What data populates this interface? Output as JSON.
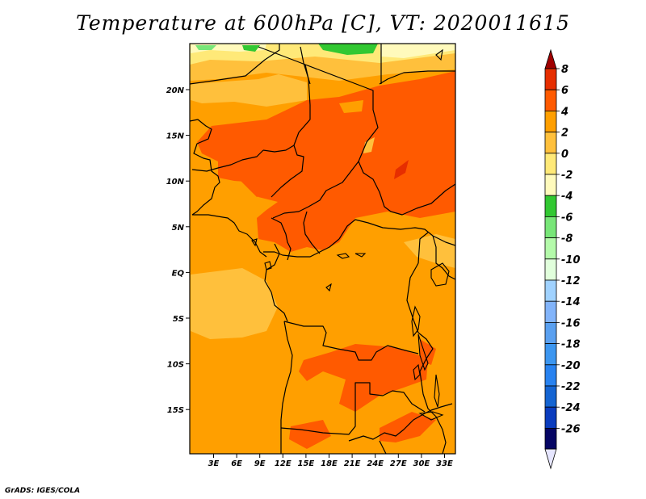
{
  "title": "Temperature at 600hPa [C], VT: 2020011615",
  "credit": "GrADS: IGES/COLA",
  "map": {
    "lon_ticks": [
      "3E",
      "6E",
      "9E",
      "12E",
      "15E",
      "18E",
      "21E",
      "24E",
      "27E",
      "30E",
      "33E"
    ],
    "lat_ticks": [
      "20N",
      "15N",
      "10N",
      "5N",
      "EQ",
      "5S",
      "10S",
      "15S"
    ]
  },
  "colorbar": {
    "labels": [
      "8",
      "6",
      "4",
      "2",
      "0",
      "-2",
      "-4",
      "-6",
      "-8",
      "-10",
      "-12",
      "-14",
      "-16",
      "-18",
      "-20",
      "-22",
      "-24",
      "-26"
    ],
    "colors": [
      "#a00000",
      "#e62e00",
      "#ff5a00",
      "#ff9f00",
      "#ffc03c",
      "#ffe978",
      "#fffabc",
      "#32c832",
      "#78e678",
      "#b4faaa",
      "#e1ffdc",
      "#a0d2ff",
      "#82b4fa",
      "#5aa0f0",
      "#3c96f0",
      "#2882f0",
      "#1464d2",
      "#0a3cbe",
      "#050564"
    ],
    "under_color": "#e6e6ff",
    "over_color": "#a00000"
  }
}
